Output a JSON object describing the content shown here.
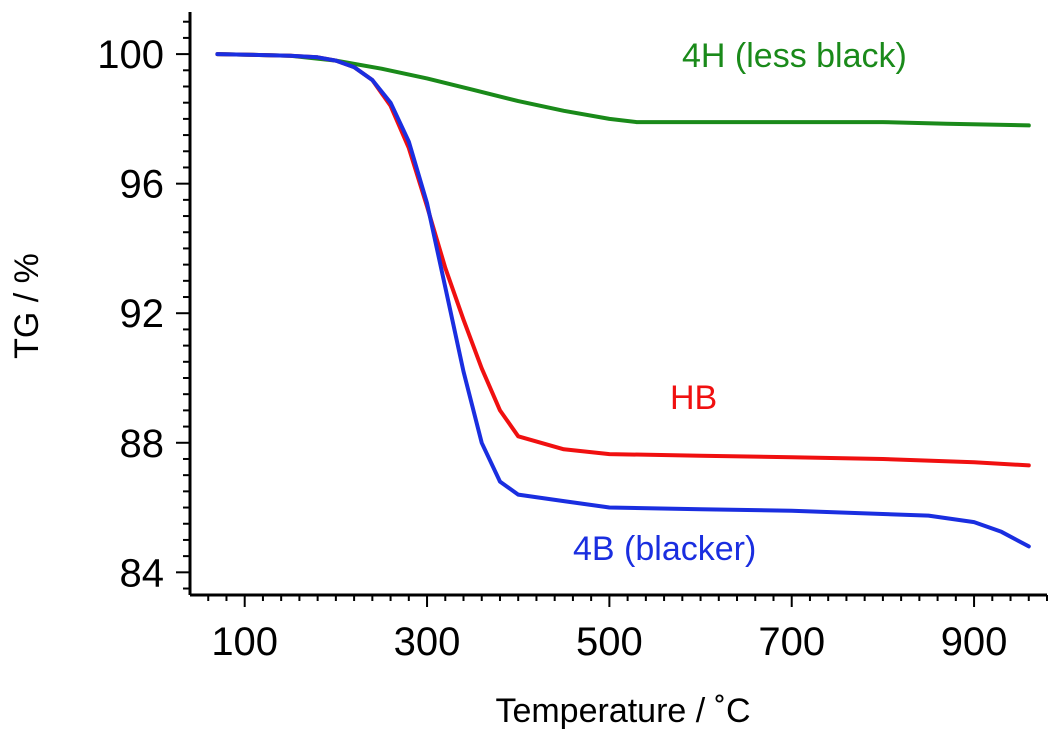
{
  "chart_data": {
    "type": "line",
    "title": "",
    "xlabel": "Temperature / ˚C",
    "ylabel": "TG / %",
    "xlim": [
      40,
      980
    ],
    "ylim": [
      83.3,
      101.3
    ],
    "x_ticks": [
      100,
      300,
      500,
      700,
      900
    ],
    "x_tick_labels": [
      "100",
      "300",
      "500",
      "700",
      "900"
    ],
    "y_ticks": [
      84,
      88,
      92,
      96,
      100
    ],
    "y_tick_labels": [
      "84",
      "88",
      "92",
      "96",
      "100"
    ],
    "x_minor_step": 20,
    "y_minor_step": 0.5,
    "grid": false,
    "series": [
      {
        "name": "4H (less black)",
        "color": "#1a8a1a",
        "points": [
          [
            70,
            100
          ],
          [
            150,
            99.95
          ],
          [
            200,
            99.8
          ],
          [
            250,
            99.55
          ],
          [
            300,
            99.25
          ],
          [
            350,
            98.9
          ],
          [
            400,
            98.55
          ],
          [
            450,
            98.25
          ],
          [
            500,
            98.0
          ],
          [
            530,
            97.9
          ],
          [
            600,
            97.9
          ],
          [
            700,
            97.9
          ],
          [
            800,
            97.9
          ],
          [
            870,
            97.85
          ],
          [
            960,
            97.8
          ]
        ]
      },
      {
        "name": "HB",
        "color": "#f01010",
        "points": [
          [
            70,
            100
          ],
          [
            150,
            99.95
          ],
          [
            180,
            99.9
          ],
          [
            200,
            99.8
          ],
          [
            220,
            99.6
          ],
          [
            240,
            99.2
          ],
          [
            260,
            98.4
          ],
          [
            280,
            97.1
          ],
          [
            300,
            95.3
          ],
          [
            320,
            93.4
          ],
          [
            340,
            91.8
          ],
          [
            360,
            90.3
          ],
          [
            380,
            89.0
          ],
          [
            400,
            88.2
          ],
          [
            450,
            87.8
          ],
          [
            500,
            87.65
          ],
          [
            600,
            87.6
          ],
          [
            700,
            87.55
          ],
          [
            800,
            87.5
          ],
          [
            900,
            87.4
          ],
          [
            960,
            87.3
          ]
        ]
      },
      {
        "name": "4B (blacker)",
        "color": "#1a2ee0",
        "points": [
          [
            70,
            100
          ],
          [
            150,
            99.95
          ],
          [
            180,
            99.9
          ],
          [
            200,
            99.8
          ],
          [
            220,
            99.6
          ],
          [
            240,
            99.2
          ],
          [
            260,
            98.5
          ],
          [
            280,
            97.3
          ],
          [
            300,
            95.4
          ],
          [
            320,
            92.8
          ],
          [
            340,
            90.2
          ],
          [
            360,
            88.0
          ],
          [
            380,
            86.8
          ],
          [
            400,
            86.4
          ],
          [
            450,
            86.2
          ],
          [
            500,
            86.0
          ],
          [
            600,
            85.95
          ],
          [
            700,
            85.9
          ],
          [
            800,
            85.8
          ],
          [
            850,
            85.75
          ],
          [
            900,
            85.55
          ],
          [
            930,
            85.25
          ],
          [
            960,
            84.8
          ]
        ]
      }
    ],
    "annotations": [
      {
        "text": "4H (less black)",
        "series": "4H (less black)"
      },
      {
        "text": "HB",
        "series": "HB"
      },
      {
        "text": "4B (blacker)",
        "series": "4B (blacker)"
      }
    ]
  }
}
